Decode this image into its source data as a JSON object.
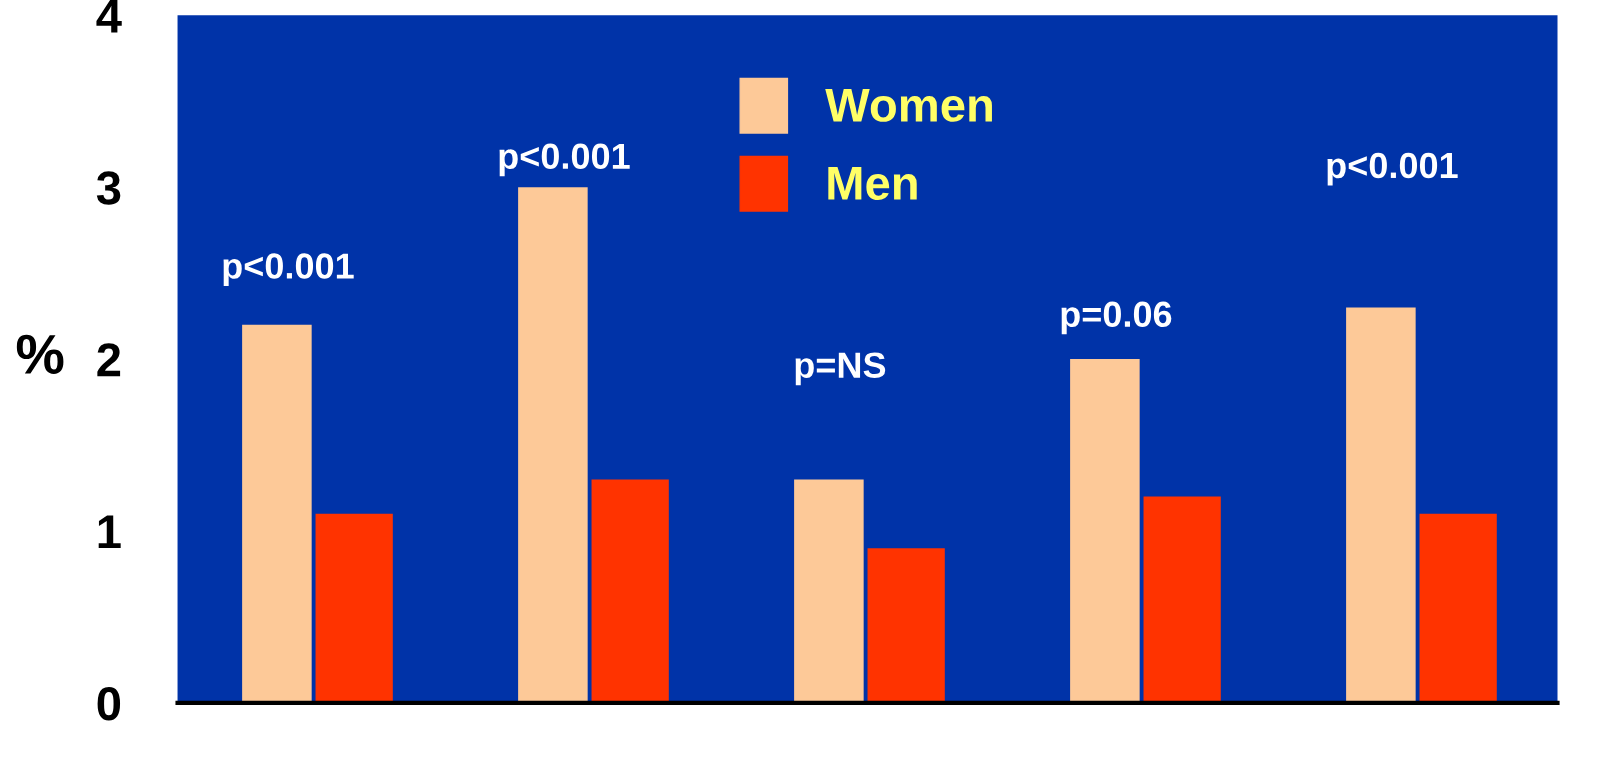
{
  "chart_data": {
    "type": "bar",
    "ylabel": "%",
    "categories": [
      null,
      null,
      null,
      null,
      null
    ],
    "series": [
      {
        "name": "Women",
        "color": "#fdc998",
        "values": [
          2.2,
          3.0,
          1.3,
          2.0,
          2.3
        ]
      },
      {
        "name": "Men",
        "color": "#ff3300",
        "values": [
          1.1,
          1.3,
          0.9,
          1.2,
          1.1
        ]
      }
    ],
    "ylim": [
      0,
      4
    ],
    "yticks": [
      0,
      1,
      2,
      3,
      4
    ],
    "grid": false,
    "legend": "top",
    "annotations": [
      "p<0.001",
      "p<0.001",
      "p=NS",
      "p=0.06",
      "p<0.001"
    ]
  }
}
